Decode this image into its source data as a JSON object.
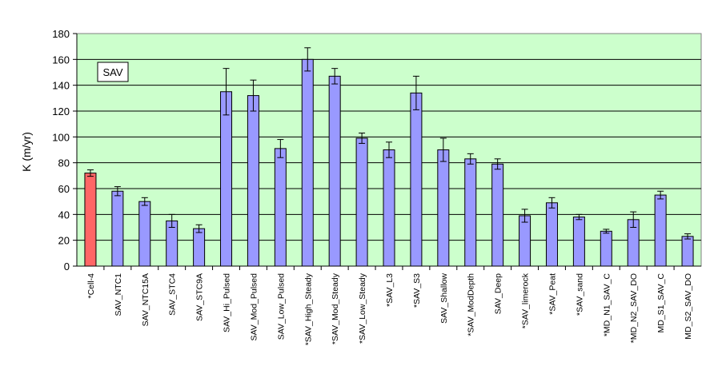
{
  "chart_data": {
    "type": "bar",
    "ylabel": "K (m/yr)",
    "ylim": [
      0,
      180
    ],
    "yticks": [
      0,
      20,
      40,
      60,
      80,
      100,
      120,
      140,
      160,
      180
    ],
    "grid": true,
    "annotation": "SAV",
    "categories": [
      "Cell-4",
      "SAV_NTC1",
      "SAV_NTC15A",
      "SAV_STC4",
      "SAV_STC9A",
      "SAV_Hi_Pulsed",
      "SAV_Mod_Pulsed",
      "SAV_Low_Pulsed",
      "SAV_High_Steady",
      "SAV_Mod_Steady",
      "SAV_Low_Steady",
      "SAV_L3",
      "SAV_S3",
      "SAV_Shallow",
      "SAV_ModDepth",
      "SAV_Deep",
      "SAV_limerock",
      "SAV_Peat",
      "SAV_sand",
      "MD_N1_SAV_C",
      "MD_N2_SAV_DO",
      "MD_S1_SAV_C",
      "MD_S2_SAV_DO"
    ],
    "marked": [
      true,
      false,
      false,
      false,
      false,
      false,
      false,
      false,
      true,
      true,
      true,
      true,
      true,
      false,
      true,
      false,
      true,
      true,
      true,
      true,
      true,
      false,
      false
    ],
    "marker_symbol": "*",
    "values": [
      72,
      58,
      50,
      35,
      29,
      135,
      132,
      91,
      160,
      147,
      99,
      90,
      134,
      90,
      83,
      79,
      39,
      49,
      38,
      27,
      36,
      55,
      23
    ],
    "errors": [
      2.5,
      3.5,
      3,
      5,
      3,
      18,
      12,
      7,
      9,
      6,
      4,
      6,
      13,
      9,
      4,
      4,
      5,
      4,
      2,
      1.5,
      6,
      3,
      2
    ],
    "bar_colors": [
      "#ff6666",
      "#9999ff",
      "#9999ff",
      "#9999ff",
      "#9999ff",
      "#9999ff",
      "#9999ff",
      "#9999ff",
      "#9999ff",
      "#9999ff",
      "#9999ff",
      "#9999ff",
      "#9999ff",
      "#9999ff",
      "#9999ff",
      "#9999ff",
      "#9999ff",
      "#9999ff",
      "#9999ff",
      "#9999ff",
      "#9999ff",
      "#9999ff",
      "#9999ff"
    ],
    "plot_background": "#ccffcc"
  }
}
